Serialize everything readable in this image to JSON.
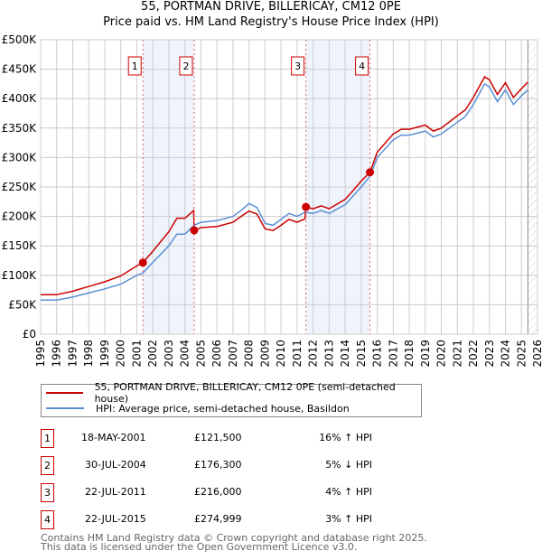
{
  "chart_data": {
    "type": "line",
    "title": "55, PORTMAN DRIVE, BILLERICAY, CM12 0PE",
    "subtitle": "Price paid vs. HM Land Registry's House Price Index (HPI)",
    "xlim": [
      1995,
      2026
    ],
    "ylim": [
      0,
      500000
    ],
    "y_ticks": [
      {
        "v": 0,
        "label": "£0"
      },
      {
        "v": 50000,
        "label": "£50K"
      },
      {
        "v": 100000,
        "label": "£100K"
      },
      {
        "v": 150000,
        "label": "£150K"
      },
      {
        "v": 200000,
        "label": "£200K"
      },
      {
        "v": 250000,
        "label": "£250K"
      },
      {
        "v": 300000,
        "label": "£300K"
      },
      {
        "v": 350000,
        "label": "£350K"
      },
      {
        "v": 400000,
        "label": "£400K"
      },
      {
        "v": 450000,
        "label": "£450K"
      },
      {
        "v": 500000,
        "label": "£500K"
      }
    ],
    "x_ticks": [
      "1995",
      "1996",
      "1997",
      "1998",
      "1999",
      "2000",
      "2001",
      "2002",
      "2003",
      "2004",
      "2005",
      "2006",
      "2007",
      "2008",
      "2009",
      "2010",
      "2011",
      "2012",
      "2013",
      "2014",
      "2015",
      "2016",
      "2017",
      "2018",
      "2019",
      "2020",
      "2021",
      "2022",
      "2023",
      "2024",
      "2025",
      "2026"
    ],
    "grid": true,
    "shaded_periods": [
      [
        2001.38,
        2004.58
      ],
      [
        2011.55,
        2015.55
      ]
    ],
    "forecast_from": 2025.4,
    "series": [
      {
        "name": "55, PORTMAN DRIVE, BILLERICAY, CM12 0PE (semi-detached house)",
        "color": "#cc0000",
        "x": [
          1995,
          1996,
          1997,
          1998,
          1999,
          2000,
          2001,
          2001.38,
          2002,
          2003,
          2003.5,
          2004,
          2004.55,
          2004.58,
          2005,
          2006,
          2007,
          2007.5,
          2008,
          2008.5,
          2009,
          2009.5,
          2010,
          2010.5,
          2011,
          2011.5,
          2011.55,
          2012,
          2012.5,
          2013,
          2014,
          2014.5,
          2015,
          2015.55,
          2016,
          2017,
          2017.5,
          2018,
          2019,
          2019.5,
          2020,
          2021,
          2021.5,
          2022,
          2022.7,
          2023,
          2023.5,
          2024,
          2024.5,
          2025,
          2025.4
        ],
        "y": [
          67000,
          67000,
          73000,
          81000,
          89000,
          99000,
          116000,
          121500,
          141000,
          174000,
          197000,
          197000,
          210000,
          176300,
          181000,
          183000,
          190000,
          200000,
          209000,
          204000,
          179000,
          176000,
          185000,
          195000,
          190000,
          196000,
          216000,
          213000,
          218000,
          213000,
          229000,
          244000,
          260000,
          274999,
          309000,
          340000,
          348000,
          348000,
          355000,
          345000,
          350000,
          371000,
          381000,
          402000,
          437000,
          432000,
          407000,
          427000,
          402000,
          417000,
          428000
        ]
      },
      {
        "name": "HPI: Average price, semi-detached house, Basildon",
        "color": "#5b8fd4",
        "x": [
          1995,
          1996,
          1997,
          1998,
          1999,
          2000,
          2001,
          2001.38,
          2002,
          2003,
          2003.5,
          2004,
          2004.58,
          2005,
          2006,
          2007,
          2007.5,
          2008,
          2008.5,
          2009,
          2009.5,
          2010,
          2010.5,
          2011,
          2011.5,
          2012,
          2012.5,
          2013,
          2014,
          2014.5,
          2015,
          2015.55,
          2016,
          2017,
          2017.5,
          2018,
          2019,
          2019.5,
          2020,
          2021,
          2021.5,
          2022,
          2022.7,
          2023,
          2023.5,
          2024,
          2024.5,
          2025,
          2025.4
        ],
        "y": [
          58000,
          58000,
          63000,
          70000,
          77000,
          85000,
          100000,
          104000,
          122000,
          150000,
          170000,
          170000,
          185000,
          190000,
          193000,
          200000,
          210000,
          222000,
          215000,
          188000,
          185000,
          195000,
          205000,
          200000,
          207000,
          205000,
          210000,
          205000,
          220000,
          235000,
          250000,
          268000,
          300000,
          330000,
          338000,
          338000,
          345000,
          335000,
          340000,
          360000,
          370000,
          390000,
          425000,
          420000,
          395000,
          415000,
          390000,
          405000,
          415000
        ]
      }
    ],
    "sales": [
      {
        "label": "1",
        "x": 2001.38,
        "y": 121500
      },
      {
        "label": "2",
        "x": 2004.58,
        "y": 176300
      },
      {
        "label": "3",
        "x": 2011.55,
        "y": 216000
      },
      {
        "label": "4",
        "x": 2015.55,
        "y": 274999
      }
    ]
  },
  "legend": {
    "property": "55, PORTMAN DRIVE, BILLERICAY, CM12 0PE (semi-detached house)",
    "hpi": "HPI: Average price, semi-detached house, Basildon"
  },
  "transactions": [
    {
      "num": "1",
      "date": "18-MAY-2001",
      "price": "£121,500",
      "hpi": "16% ↑ HPI"
    },
    {
      "num": "2",
      "date": "30-JUL-2004",
      "price": "£176,300",
      "hpi": "5% ↓ HPI"
    },
    {
      "num": "3",
      "date": "22-JUL-2011",
      "price": "£216,000",
      "hpi": "4% ↑ HPI"
    },
    {
      "num": "4",
      "date": "22-JUL-2015",
      "price": "£274,999",
      "hpi": "3% ↑ HPI"
    }
  ],
  "footer": {
    "line1": "Contains HM Land Registry data © Crown copyright and database right 2025.",
    "line2": "This data is licensed under the Open Government Licence v3.0."
  }
}
